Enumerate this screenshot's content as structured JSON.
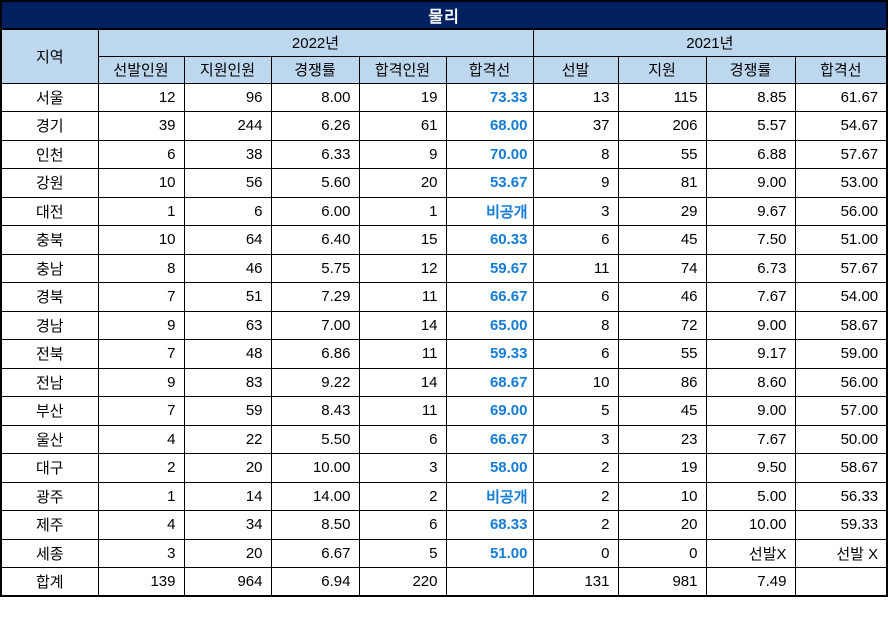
{
  "title": "물리",
  "header": {
    "region": "지역",
    "groups": [
      {
        "label": "2022년",
        "columns": [
          "선발인원",
          "지원인원",
          "경쟁률",
          "합격인원",
          "합격선"
        ]
      },
      {
        "label": "2021년",
        "columns": [
          "선발",
          "지원",
          "경쟁률",
          "합격선"
        ]
      }
    ]
  },
  "chart_data": {
    "type": "table",
    "title": "물리",
    "column_groups": [
      "2022년",
      "2021년"
    ],
    "columns": [
      "지역",
      "2022년 선발인원",
      "2022년 지원인원",
      "2022년 경쟁률",
      "2022년 합격인원",
      "2022년 합격선",
      "2021년 선발",
      "2021년 지원",
      "2021년 경쟁률",
      "2021년 합격선"
    ],
    "rows": [
      [
        "서울",
        "12",
        "96",
        "8.00",
        "19",
        "73.33",
        "13",
        "115",
        "8.85",
        "61.67"
      ],
      [
        "경기",
        "39",
        "244",
        "6.26",
        "61",
        "68.00",
        "37",
        "206",
        "5.57",
        "54.67"
      ],
      [
        "인천",
        "6",
        "38",
        "6.33",
        "9",
        "70.00",
        "8",
        "55",
        "6.88",
        "57.67"
      ],
      [
        "강원",
        "10",
        "56",
        "5.60",
        "20",
        "53.67",
        "9",
        "81",
        "9.00",
        "53.00"
      ],
      [
        "대전",
        "1",
        "6",
        "6.00",
        "1",
        "비공개",
        "3",
        "29",
        "9.67",
        "56.00"
      ],
      [
        "충북",
        "10",
        "64",
        "6.40",
        "15",
        "60.33",
        "6",
        "45",
        "7.50",
        "51.00"
      ],
      [
        "충남",
        "8",
        "46",
        "5.75",
        "12",
        "59.67",
        "11",
        "74",
        "6.73",
        "57.67"
      ],
      [
        "경북",
        "7",
        "51",
        "7.29",
        "11",
        "66.67",
        "6",
        "46",
        "7.67",
        "54.00"
      ],
      [
        "경남",
        "9",
        "63",
        "7.00",
        "14",
        "65.00",
        "8",
        "72",
        "9.00",
        "58.67"
      ],
      [
        "전북",
        "7",
        "48",
        "6.86",
        "11",
        "59.33",
        "6",
        "55",
        "9.17",
        "59.00"
      ],
      [
        "전남",
        "9",
        "83",
        "9.22",
        "14",
        "68.67",
        "10",
        "86",
        "8.60",
        "56.00"
      ],
      [
        "부산",
        "7",
        "59",
        "8.43",
        "11",
        "69.00",
        "5",
        "45",
        "9.00",
        "57.00"
      ],
      [
        "울산",
        "4",
        "22",
        "5.50",
        "6",
        "66.67",
        "3",
        "23",
        "7.67",
        "50.00"
      ],
      [
        "대구",
        "2",
        "20",
        "10.00",
        "3",
        "58.00",
        "2",
        "19",
        "9.50",
        "58.67"
      ],
      [
        "광주",
        "1",
        "14",
        "14.00",
        "2",
        "비공개",
        "2",
        "10",
        "5.00",
        "56.33"
      ],
      [
        "제주",
        "4",
        "34",
        "8.50",
        "6",
        "68.33",
        "2",
        "20",
        "10.00",
        "59.33"
      ],
      [
        "세종",
        "3",
        "20",
        "6.67",
        "5",
        "51.00",
        "0",
        "0",
        "선발X",
        "선발 X"
      ],
      [
        "합계",
        "139",
        "964",
        "6.94",
        "220",
        "",
        "131",
        "981",
        "7.49",
        ""
      ]
    ]
  },
  "colors": {
    "title_bg": "#002060",
    "title_text": "#ffffff",
    "header_bg": "#bdd7ee",
    "cutoff_blue": "#147cd6",
    "border": "#000000"
  }
}
